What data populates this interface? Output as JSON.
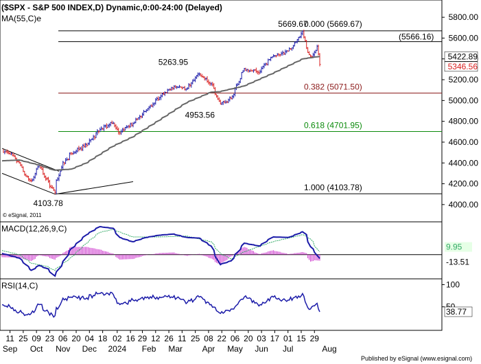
{
  "header": {
    "title": "($SPX - S&P 500 INDEX,D) Dynamic,0:00-24:00 (Delayed)",
    "ma_label": "MA(55,C)e",
    "copyright": "© eSignal, 2011",
    "published": "Published by eSignal (www.esignal.com)"
  },
  "colors": {
    "up": "#1a1aa8",
    "down": "#d81c1c",
    "ma": "#666666",
    "fib_382": "#8b1a1a",
    "fib_618": "#0a8a0a",
    "macd": "#1a1aa8",
    "signal": "#33aa66",
    "hist": "#cc33cc",
    "rsi": "#1a1aa8"
  },
  "chart_data": [
    {
      "type": "candlestick",
      "title": "($SPX - S&P 500 INDEX,D) Dynamic,0:00-24:00 (Delayed)",
      "ylim": [
        3900,
        5900
      ],
      "y_ticks": [
        "5800.00",
        "5600.00",
        "5400.00",
        "5200.00",
        "5000.00",
        "4800.00",
        "4600.00",
        "4400.00",
        "4200.00",
        "4000.00"
      ],
      "y_tick_values": [
        5800,
        5600,
        5400,
        5200,
        5000,
        4800,
        4600,
        4400,
        4200,
        4000
      ],
      "close_labels": [
        {
          "value": 5422.89,
          "text": "5422.89",
          "color": "#000000"
        },
        {
          "value": 5346.56,
          "text": "5346.56",
          "color": "#d81c1c"
        }
      ],
      "annotations": [
        {
          "text": "5669.67",
          "x": "2024-07-16",
          "y": 5669.67
        },
        {
          "text": "5263.95",
          "x": "2024-03-28",
          "y": 5263.95
        },
        {
          "text": "4953.56",
          "x": "2024-04-19",
          "y": 4953.56
        },
        {
          "text": "4103.78",
          "x": "2023-10-27",
          "y": 4103.78
        }
      ],
      "fib_levels": [
        {
          "label": "0.000 (5669.67)",
          "value": 5669.67,
          "color": "#000000"
        },
        {
          "label": "(5566.16)",
          "value": 5566.16,
          "color": "#000000"
        },
        {
          "label": "0.382 (5071.50)",
          "value": 5071.5,
          "color": "#8b1a1a"
        },
        {
          "label": "0.618 (4701.95)",
          "value": 4701.95,
          "color": "#0a8a0a"
        },
        {
          "label": "1.000 (4103.78)",
          "value": 4103.78,
          "color": "#000000"
        }
      ],
      "trendlines": [
        {
          "from": [
            "2023-09-01",
            4540
          ],
          "to": [
            "2023-11-01",
            4320
          ]
        },
        {
          "from": [
            "2023-09-01",
            4300
          ],
          "to": [
            "2023-10-27",
            4100
          ]
        },
        {
          "from": [
            "2023-10-27",
            4100
          ],
          "to": [
            "2024-01-18",
            4220
          ]
        }
      ],
      "x_ticks": [
        "11",
        "25",
        "09",
        "23",
        "06",
        "20",
        "04",
        "18",
        "02",
        "16",
        "29",
        "12",
        "26",
        "11",
        "25",
        "08",
        "22",
        "06",
        "20",
        "03",
        "17",
        "01",
        "15",
        "29"
      ],
      "x_months": [
        "Sep",
        "Oct",
        "Nov",
        "Dec",
        "2024",
        "Feb",
        "Mar",
        "Apr",
        "May",
        "Jun",
        "Jul",
        "Aug"
      ],
      "series": [
        {
          "name": "$SPX",
          "anchors": [
            [
              "2023-09-01",
              4515
            ],
            [
              "2023-09-11",
              4487
            ],
            [
              "2023-09-20",
              4402
            ],
            [
              "2023-09-27",
              4274
            ],
            [
              "2023-10-03",
              4229
            ],
            [
              "2023-10-11",
              4376
            ],
            [
              "2023-10-20",
              4224
            ],
            [
              "2023-10-27",
              4117
            ],
            [
              "2023-11-03",
              4358
            ],
            [
              "2023-11-14",
              4495
            ],
            [
              "2023-11-30",
              4568
            ],
            [
              "2023-12-14",
              4720
            ],
            [
              "2023-12-28",
              4783
            ],
            [
              "2024-01-04",
              4688
            ],
            [
              "2024-01-18",
              4780
            ],
            [
              "2024-02-01",
              4906
            ],
            [
              "2024-02-15",
              5029
            ],
            [
              "2024-03-01",
              5137
            ],
            [
              "2024-03-15",
              5117
            ],
            [
              "2024-03-28",
              5254
            ],
            [
              "2024-04-10",
              5160
            ],
            [
              "2024-04-19",
              4967
            ],
            [
              "2024-05-01",
              5018
            ],
            [
              "2024-05-15",
              5308
            ],
            [
              "2024-05-31",
              5277
            ],
            [
              "2024-06-14",
              5431
            ],
            [
              "2024-07-01",
              5475
            ],
            [
              "2024-07-16",
              5667
            ],
            [
              "2024-07-19",
              5505
            ],
            [
              "2024-07-24",
              5427
            ],
            [
              "2024-07-29",
              5463
            ],
            [
              "2024-07-31",
              5522
            ],
            [
              "2024-08-01",
              5446
            ],
            [
              "2024-08-02",
              5346.56
            ]
          ]
        },
        {
          "name": "MA(55,C)e",
          "anchors": [
            [
              "2023-09-01",
              4420
            ],
            [
              "2023-09-20",
              4428
            ],
            [
              "2023-10-11",
              4380
            ],
            [
              "2023-10-27",
              4330
            ],
            [
              "2023-11-14",
              4340
            ],
            [
              "2023-11-30",
              4400
            ],
            [
              "2023-12-28",
              4560
            ],
            [
              "2024-01-18",
              4650
            ],
            [
              "2024-02-15",
              4810
            ],
            [
              "2024-03-15",
              4980
            ],
            [
              "2024-04-10",
              5080
            ],
            [
              "2024-04-19",
              5085
            ],
            [
              "2024-05-15",
              5140
            ],
            [
              "2024-06-14",
              5260
            ],
            [
              "2024-07-16",
              5400
            ],
            [
              "2024-08-02",
              5422.89
            ]
          ]
        }
      ]
    },
    {
      "type": "line",
      "title": "MACD(12,26,9,C)",
      "value_labels": [
        "9.95",
        "-13.51"
      ],
      "level_label_values": [
        9.95,
        -13.51
      ],
      "ylim": [
        -80,
        110
      ],
      "series": [
        {
          "name": "MACD",
          "anchors": [
            [
              "2023-09-01",
              5
            ],
            [
              "2023-09-20",
              -12
            ],
            [
              "2023-10-03",
              -55
            ],
            [
              "2023-10-11",
              -38
            ],
            [
              "2023-10-20",
              -50
            ],
            [
              "2023-10-27",
              -75
            ],
            [
              "2023-11-03",
              -40
            ],
            [
              "2023-11-14",
              20
            ],
            [
              "2023-11-30",
              70
            ],
            [
              "2023-12-14",
              98
            ],
            [
              "2023-12-28",
              92
            ],
            [
              "2024-01-04",
              60
            ],
            [
              "2024-01-18",
              45
            ],
            [
              "2024-02-01",
              60
            ],
            [
              "2024-02-15",
              68
            ],
            [
              "2024-03-01",
              72
            ],
            [
              "2024-03-15",
              60
            ],
            [
              "2024-03-28",
              58
            ],
            [
              "2024-04-10",
              30
            ],
            [
              "2024-04-19",
              -35
            ],
            [
              "2024-05-01",
              -22
            ],
            [
              "2024-05-15",
              40
            ],
            [
              "2024-05-31",
              30
            ],
            [
              "2024-06-14",
              62
            ],
            [
              "2024-07-01",
              60
            ],
            [
              "2024-07-16",
              80
            ],
            [
              "2024-07-19",
              70
            ],
            [
              "2024-07-24",
              28
            ],
            [
              "2024-07-29",
              8
            ],
            [
              "2024-08-02",
              -13.51
            ]
          ]
        },
        {
          "name": "Signal",
          "anchors": [
            [
              "2023-09-01",
              15
            ],
            [
              "2023-09-20",
              0
            ],
            [
              "2023-10-03",
              -30
            ],
            [
              "2023-10-20",
              -42
            ],
            [
              "2023-10-27",
              -55
            ],
            [
              "2023-11-14",
              -10
            ],
            [
              "2023-11-30",
              40
            ],
            [
              "2023-12-14",
              78
            ],
            [
              "2023-12-28",
              88
            ],
            [
              "2024-01-18",
              62
            ],
            [
              "2024-02-15",
              62
            ],
            [
              "2024-03-15",
              65
            ],
            [
              "2024-04-10",
              45
            ],
            [
              "2024-04-19",
              5
            ],
            [
              "2024-05-01",
              -15
            ],
            [
              "2024-05-15",
              10
            ],
            [
              "2024-06-14",
              45
            ],
            [
              "2024-07-01",
              58
            ],
            [
              "2024-07-16",
              70
            ],
            [
              "2024-07-24",
              55
            ],
            [
              "2024-08-02",
              9.95
            ]
          ]
        }
      ]
    },
    {
      "type": "line",
      "title": "RSI(14,C)",
      "y_ticks": [
        "100",
        "50"
      ],
      "y_tick_values": [
        100,
        50
      ],
      "value_labels": [
        "38.77"
      ],
      "level_label_values": [
        38.77
      ],
      "ylim": [
        0,
        110
      ],
      "series": [
        {
          "name": "RSI",
          "anchors": [
            [
              "2023-09-01",
              55
            ],
            [
              "2023-09-11",
              50
            ],
            [
              "2023-09-20",
              38
            ],
            [
              "2023-09-27",
              32
            ],
            [
              "2023-10-03",
              35
            ],
            [
              "2023-10-11",
              55
            ],
            [
              "2023-10-20",
              38
            ],
            [
              "2023-10-27",
              30
            ],
            [
              "2023-11-03",
              62
            ],
            [
              "2023-11-14",
              72
            ],
            [
              "2023-11-30",
              70
            ],
            [
              "2023-12-14",
              80
            ],
            [
              "2023-12-28",
              78
            ],
            [
              "2024-01-04",
              55
            ],
            [
              "2024-01-18",
              65
            ],
            [
              "2024-02-01",
              70
            ],
            [
              "2024-02-15",
              72
            ],
            [
              "2024-03-01",
              75
            ],
            [
              "2024-03-15",
              60
            ],
            [
              "2024-03-28",
              72
            ],
            [
              "2024-04-10",
              55
            ],
            [
              "2024-04-19",
              35
            ],
            [
              "2024-05-01",
              45
            ],
            [
              "2024-05-15",
              72
            ],
            [
              "2024-05-31",
              55
            ],
            [
              "2024-06-14",
              72
            ],
            [
              "2024-07-01",
              65
            ],
            [
              "2024-07-16",
              80
            ],
            [
              "2024-07-19",
              55
            ],
            [
              "2024-07-24",
              45
            ],
            [
              "2024-07-29",
              52
            ],
            [
              "2024-07-31",
              58
            ],
            [
              "2024-08-01",
              45
            ],
            [
              "2024-08-02",
              38.77
            ]
          ]
        }
      ]
    }
  ]
}
